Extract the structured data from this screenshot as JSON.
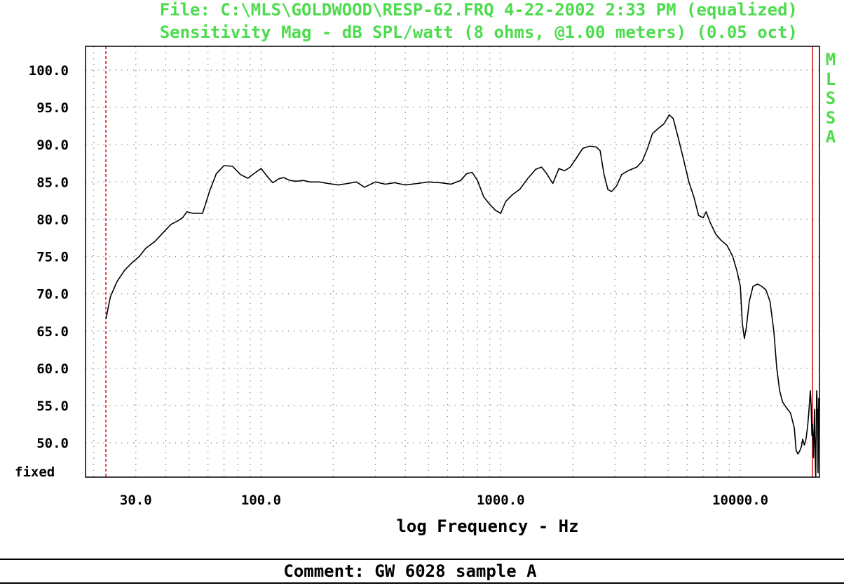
{
  "header": {
    "line1": "File: C:\\MLS\\GOLDWOOD\\RESP-62.FRQ 4-22-2002 2:33 PM (equalized)",
    "line2": "Sensitivity Mag - dB SPL/watt (8 ohms, @1.00 meters) (0.05 oct)"
  },
  "brand": [
    "M",
    "L",
    "S",
    "S",
    "A"
  ],
  "comment": "Comment: GW 6028 sample A",
  "colors": {
    "accent": "#4ddc4d",
    "marker": "#e02020",
    "trace": "#000000",
    "grid": "#9a9a9a"
  },
  "chart_data": {
    "type": "line",
    "title": "Sensitivity Mag - dB SPL/watt (8 ohms, @1.00 meters) (0.05 oct)",
    "xlabel": "log Frequency - Hz",
    "ylabel": "",
    "x_scale": "log",
    "xlim": [
      18.5,
      21400
    ],
    "ylim": [
      45.4,
      103.2
    ],
    "x_ticks": [
      30,
      100,
      1000,
      10000
    ],
    "x_tick_labels": [
      "30.0",
      "100.0",
      "1000.0",
      "10000.0"
    ],
    "y_ticks": [
      100,
      95,
      90,
      85,
      80,
      75,
      70,
      65,
      60,
      55,
      50
    ],
    "y_tick_labels": [
      "100.0",
      "95.0",
      "90.0",
      "85.0",
      "80.0",
      "75.0",
      "70.0",
      "65.0",
      "60.0",
      "55.0",
      "50.0"
    ],
    "y_bottom_label": "fixed",
    "grid": true,
    "markers": [
      {
        "freq": 22.5,
        "style": "dashed"
      },
      {
        "freq": 20000,
        "style": "solid"
      }
    ],
    "series": [
      {
        "points": [
          [
            22.5,
            66.6
          ],
          [
            23.5,
            69.6
          ],
          [
            25,
            71.6
          ],
          [
            27,
            73.2
          ],
          [
            29,
            74.2
          ],
          [
            31,
            75
          ],
          [
            33,
            76.1
          ],
          [
            36,
            77
          ],
          [
            39,
            78.2
          ],
          [
            42,
            79.3
          ],
          [
            45,
            79.8
          ],
          [
            47,
            80.2
          ],
          [
            49,
            81
          ],
          [
            52,
            80.8
          ],
          [
            57,
            80.8
          ],
          [
            61,
            83.8
          ],
          [
            65,
            86.1
          ],
          [
            70,
            87.2
          ],
          [
            76,
            87.1
          ],
          [
            82,
            86
          ],
          [
            88,
            85.5
          ],
          [
            94,
            86.2
          ],
          [
            100,
            86.8
          ],
          [
            107,
            85.6
          ],
          [
            112,
            84.9
          ],
          [
            118,
            85.4
          ],
          [
            124,
            85.6
          ],
          [
            132,
            85.2
          ],
          [
            140,
            85.1
          ],
          [
            150,
            85.2
          ],
          [
            160,
            85
          ],
          [
            175,
            85
          ],
          [
            190,
            84.8
          ],
          [
            210,
            84.6
          ],
          [
            230,
            84.8
          ],
          [
            250,
            85
          ],
          [
            270,
            84.3
          ],
          [
            300,
            85
          ],
          [
            330,
            84.7
          ],
          [
            360,
            84.9
          ],
          [
            400,
            84.6
          ],
          [
            450,
            84.8
          ],
          [
            500,
            85
          ],
          [
            560,
            84.9
          ],
          [
            620,
            84.7
          ],
          [
            680,
            85.2
          ],
          [
            720,
            86.1
          ],
          [
            760,
            86.3
          ],
          [
            800,
            85.2
          ],
          [
            850,
            83
          ],
          [
            900,
            82
          ],
          [
            950,
            81.2
          ],
          [
            1000,
            80.8
          ],
          [
            1050,
            82.4
          ],
          [
            1120,
            83.3
          ],
          [
            1200,
            84
          ],
          [
            1300,
            85.5
          ],
          [
            1400,
            86.7
          ],
          [
            1480,
            87
          ],
          [
            1550,
            86.2
          ],
          [
            1650,
            84.8
          ],
          [
            1750,
            86.8
          ],
          [
            1850,
            86.5
          ],
          [
            1950,
            87
          ],
          [
            2050,
            88
          ],
          [
            2200,
            89.5
          ],
          [
            2350,
            89.8
          ],
          [
            2500,
            89.7
          ],
          [
            2600,
            89.2
          ],
          [
            2700,
            86
          ],
          [
            2800,
            84
          ],
          [
            2900,
            83.7
          ],
          [
            3050,
            84.5
          ],
          [
            3200,
            86
          ],
          [
            3400,
            86.5
          ],
          [
            3700,
            87
          ],
          [
            3900,
            87.8
          ],
          [
            4100,
            89.5
          ],
          [
            4300,
            91.5
          ],
          [
            4550,
            92.2
          ],
          [
            4800,
            92.8
          ],
          [
            5050,
            94
          ],
          [
            5250,
            93.5
          ],
          [
            5500,
            91
          ],
          [
            5800,
            88
          ],
          [
            6100,
            85
          ],
          [
            6400,
            83
          ],
          [
            6700,
            80.5
          ],
          [
            7000,
            80.2
          ],
          [
            7200,
            81
          ],
          [
            7500,
            79.5
          ],
          [
            7900,
            78
          ],
          [
            8300,
            77.2
          ],
          [
            8800,
            76.5
          ],
          [
            9300,
            75
          ],
          [
            9700,
            73
          ],
          [
            10000,
            71
          ],
          [
            10200,
            66
          ],
          [
            10400,
            64
          ],
          [
            10600,
            65.5
          ],
          [
            10900,
            69
          ],
          [
            11300,
            71
          ],
          [
            11800,
            71.3
          ],
          [
            12300,
            71
          ],
          [
            12800,
            70.5
          ],
          [
            13300,
            69
          ],
          [
            13800,
            65
          ],
          [
            14200,
            60
          ],
          [
            14600,
            57
          ],
          [
            15000,
            55.5
          ],
          [
            15500,
            54.8
          ],
          [
            16200,
            54
          ],
          [
            16800,
            52
          ],
          [
            17100,
            49
          ],
          [
            17400,
            48.5
          ],
          [
            17700,
            48.9
          ],
          [
            18000,
            49.5
          ],
          [
            18200,
            50.5
          ],
          [
            18500,
            49.7
          ],
          [
            18800,
            50.5
          ],
          [
            19100,
            52.2
          ],
          [
            19300,
            54
          ],
          [
            19600,
            57
          ],
          [
            19750,
            55
          ],
          [
            19900,
            51
          ],
          [
            20000,
            52.5
          ],
          [
            20100,
            51
          ],
          [
            20200,
            48
          ],
          [
            20300,
            51
          ],
          [
            20400,
            54.5
          ],
          [
            20500,
            50
          ],
          [
            20600,
            46.5
          ],
          [
            20650,
            45.5
          ],
          [
            20700,
            50
          ],
          [
            20750,
            51
          ],
          [
            20800,
            56
          ],
          [
            20850,
            57
          ],
          [
            20900,
            56
          ],
          [
            20950,
            54
          ],
          [
            21000,
            54.5
          ],
          [
            21050,
            51
          ],
          [
            21100,
            46
          ],
          [
            21150,
            49
          ],
          [
            21200,
            53
          ],
          [
            21250,
            56
          ],
          [
            21300,
            55
          ],
          [
            21350,
            52
          ],
          [
            21400,
            56
          ]
        ]
      }
    ]
  }
}
